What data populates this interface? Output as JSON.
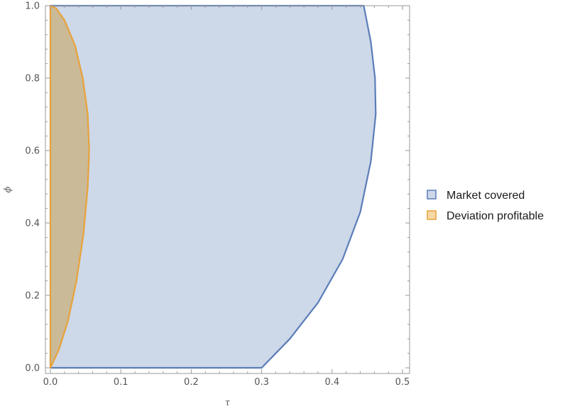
{
  "chart_data": {
    "type": "area",
    "xlabel": "τ",
    "ylabel": "ϕ",
    "xlim": [
      0,
      0.5
    ],
    "ylim": [
      0,
      1.0
    ],
    "xticks": [
      "0.0",
      "0.1",
      "0.2",
      "0.3",
      "0.4",
      "0.5"
    ],
    "yticks": [
      "0.0",
      "0.2",
      "0.4",
      "0.6",
      "0.8",
      "1.0"
    ],
    "grid": false,
    "legend_position": "right",
    "series": [
      {
        "name": "Market covered",
        "fill": "#cdd8e8",
        "stroke": "#5b7db8",
        "boundary": [
          {
            "x": 0.0,
            "y": 0.0
          },
          {
            "x": 0.3,
            "y": 0.0
          },
          {
            "x": 0.34,
            "y": 0.08
          },
          {
            "x": 0.38,
            "y": 0.18
          },
          {
            "x": 0.415,
            "y": 0.3
          },
          {
            "x": 0.44,
            "y": 0.43
          },
          {
            "x": 0.455,
            "y": 0.57
          },
          {
            "x": 0.462,
            "y": 0.7
          },
          {
            "x": 0.461,
            "y": 0.8
          },
          {
            "x": 0.455,
            "y": 0.9
          },
          {
            "x": 0.445,
            "y": 1.0
          },
          {
            "x": 0.0,
            "y": 1.0
          }
        ]
      },
      {
        "name": "Deviation profitable",
        "fill": "#c9b58a",
        "stroke": "#e8a23a",
        "boundary": [
          {
            "x": 0.0,
            "y": 0.0
          },
          {
            "x": 0.012,
            "y": 0.05
          },
          {
            "x": 0.025,
            "y": 0.13
          },
          {
            "x": 0.037,
            "y": 0.24
          },
          {
            "x": 0.047,
            "y": 0.37
          },
          {
            "x": 0.053,
            "y": 0.5
          },
          {
            "x": 0.055,
            "y": 0.6
          },
          {
            "x": 0.053,
            "y": 0.7
          },
          {
            "x": 0.046,
            "y": 0.8
          },
          {
            "x": 0.035,
            "y": 0.89
          },
          {
            "x": 0.02,
            "y": 0.96
          },
          {
            "x": 0.008,
            "y": 0.993
          },
          {
            "x": 0.0,
            "y": 1.0
          }
        ]
      }
    ]
  }
}
